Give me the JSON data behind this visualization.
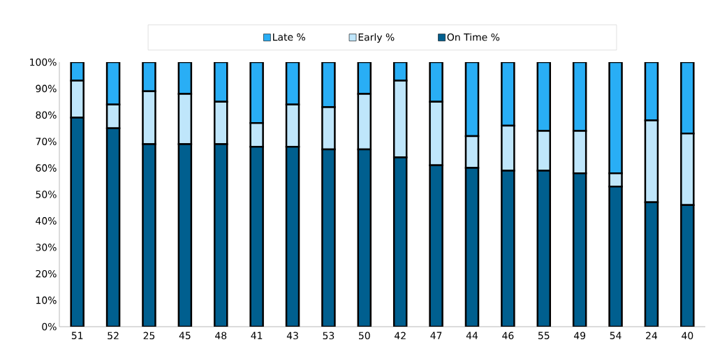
{
  "chart_data": {
    "type": "bar",
    "stacked": true,
    "legend": "top",
    "categories": [
      "51",
      "52",
      "25",
      "45",
      "48",
      "41",
      "43",
      "53",
      "50",
      "42",
      "47",
      "44",
      "46",
      "55",
      "49",
      "54",
      "24",
      "40"
    ],
    "series": [
      {
        "name": "On Time %",
        "color": "#005f8f",
        "values": [
          79,
          75,
          69,
          69,
          69,
          68,
          68,
          67,
          67,
          64,
          61,
          60,
          59,
          59,
          58,
          53,
          47,
          46
        ]
      },
      {
        "name": "Early %",
        "color": "#bfe6fb",
        "values": [
          14,
          9,
          20,
          19,
          16,
          9,
          16,
          16,
          21,
          29,
          24,
          12,
          17,
          15,
          16,
          5,
          31,
          27
        ]
      },
      {
        "name": "Late %",
        "color": "#29aef5",
        "values": [
          7,
          16,
          11,
          12,
          15,
          23,
          16,
          17,
          12,
          7,
          15,
          28,
          24,
          26,
          26,
          42,
          22,
          27
        ]
      }
    ],
    "ylim": [
      0,
      100
    ],
    "yticks": [
      {
        "value": 0,
        "label": "0%"
      },
      {
        "value": 10,
        "label": "10%"
      },
      {
        "value": 20,
        "label": "20%"
      },
      {
        "value": 30,
        "label": "30%"
      },
      {
        "value": 40,
        "label": "40%"
      },
      {
        "value": 50,
        "label": "50%"
      },
      {
        "value": 60,
        "label": "60%"
      },
      {
        "value": 70,
        "label": "70%"
      },
      {
        "value": 80,
        "label": "80%"
      },
      {
        "value": 90,
        "label": "90%"
      },
      {
        "value": 100,
        "label": "100%"
      }
    ]
  }
}
